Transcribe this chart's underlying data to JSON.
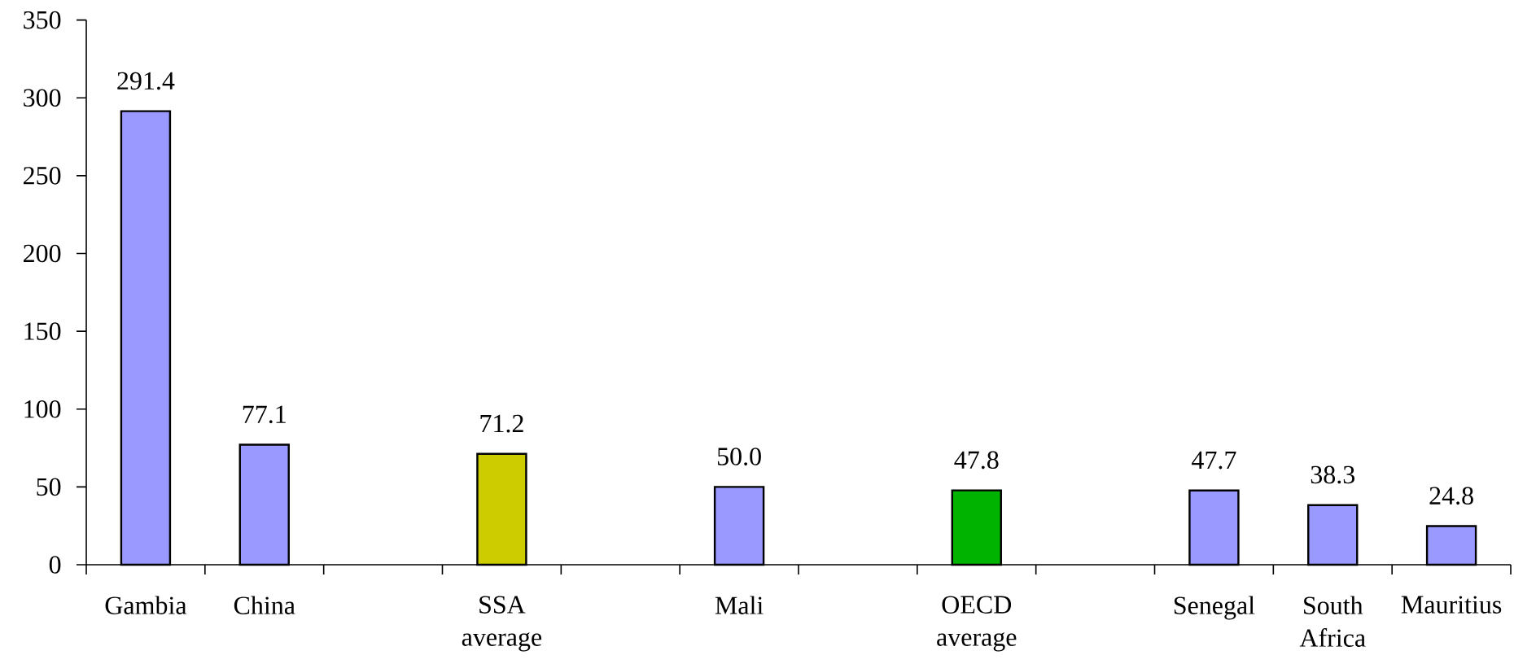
{
  "chart_data": {
    "type": "bar",
    "categories": [
      "Gambia",
      "China",
      null,
      "SSA average",
      null,
      "Mali",
      null,
      "OECD average",
      null,
      "Senegal",
      "South Africa",
      "Mauritius"
    ],
    "values": [
      291.4,
      77.1,
      null,
      71.2,
      null,
      50.0,
      null,
      47.8,
      null,
      47.7,
      38.3,
      24.8
    ],
    "colors": [
      "#9999ff",
      "#9999ff",
      null,
      "#cccc00",
      null,
      "#9999ff",
      null,
      "#00b300",
      null,
      "#9999ff",
      "#9999ff",
      "#9999ff"
    ],
    "value_labels": [
      "291.4",
      "77.1",
      null,
      "71.2",
      null,
      "50.0",
      null,
      "47.8",
      null,
      "47.7",
      "38.3",
      "24.8"
    ],
    "ylim": [
      0,
      350
    ],
    "yticks": [
      0,
      50,
      100,
      150,
      200,
      250,
      300,
      350
    ]
  }
}
